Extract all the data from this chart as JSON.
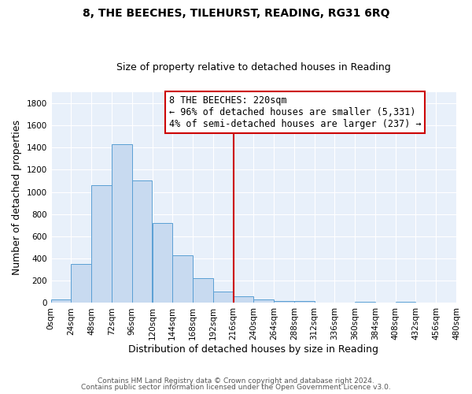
{
  "title": "8, THE BEECHES, TILEHURST, READING, RG31 6RQ",
  "subtitle": "Size of property relative to detached houses in Reading",
  "xlabel": "Distribution of detached houses by size in Reading",
  "ylabel": "Number of detached properties",
  "bar_color": "#c8daf0",
  "bar_edge_color": "#5a9fd4",
  "background_color": "#e8f0fa",
  "grid_color": "#ffffff",
  "vline_x": 216,
  "vline_color": "#cc0000",
  "bin_edges": [
    0,
    24,
    48,
    72,
    96,
    120,
    144,
    168,
    192,
    216,
    240,
    264,
    288,
    312,
    336,
    360,
    384,
    408,
    432,
    456,
    480
  ],
  "bar_heights": [
    30,
    350,
    1060,
    1430,
    1100,
    720,
    430,
    225,
    100,
    60,
    30,
    20,
    20,
    0,
    0,
    10,
    0,
    10,
    0,
    0
  ],
  "ylim": [
    0,
    1900
  ],
  "yticks": [
    0,
    200,
    400,
    600,
    800,
    1000,
    1200,
    1400,
    1600,
    1800
  ],
  "xtick_labels": [
    "0sqm",
    "24sqm",
    "48sqm",
    "72sqm",
    "96sqm",
    "120sqm",
    "144sqm",
    "168sqm",
    "192sqm",
    "216sqm",
    "240sqm",
    "264sqm",
    "288sqm",
    "312sqm",
    "336sqm",
    "360sqm",
    "384sqm",
    "408sqm",
    "432sqm",
    "456sqm",
    "480sqm"
  ],
  "legend_title": "8 THE BEECHES: 220sqm",
  "legend_line1": "← 96% of detached houses are smaller (5,331)",
  "legend_line2": "4% of semi-detached houses are larger (237) →",
  "footer1": "Contains HM Land Registry data © Crown copyright and database right 2024.",
  "footer2": "Contains public sector information licensed under the Open Government Licence v3.0.",
  "title_fontsize": 10,
  "subtitle_fontsize": 9,
  "axis_label_fontsize": 9,
  "tick_fontsize": 7.5,
  "legend_fontsize": 8.5,
  "footer_fontsize": 6.5
}
